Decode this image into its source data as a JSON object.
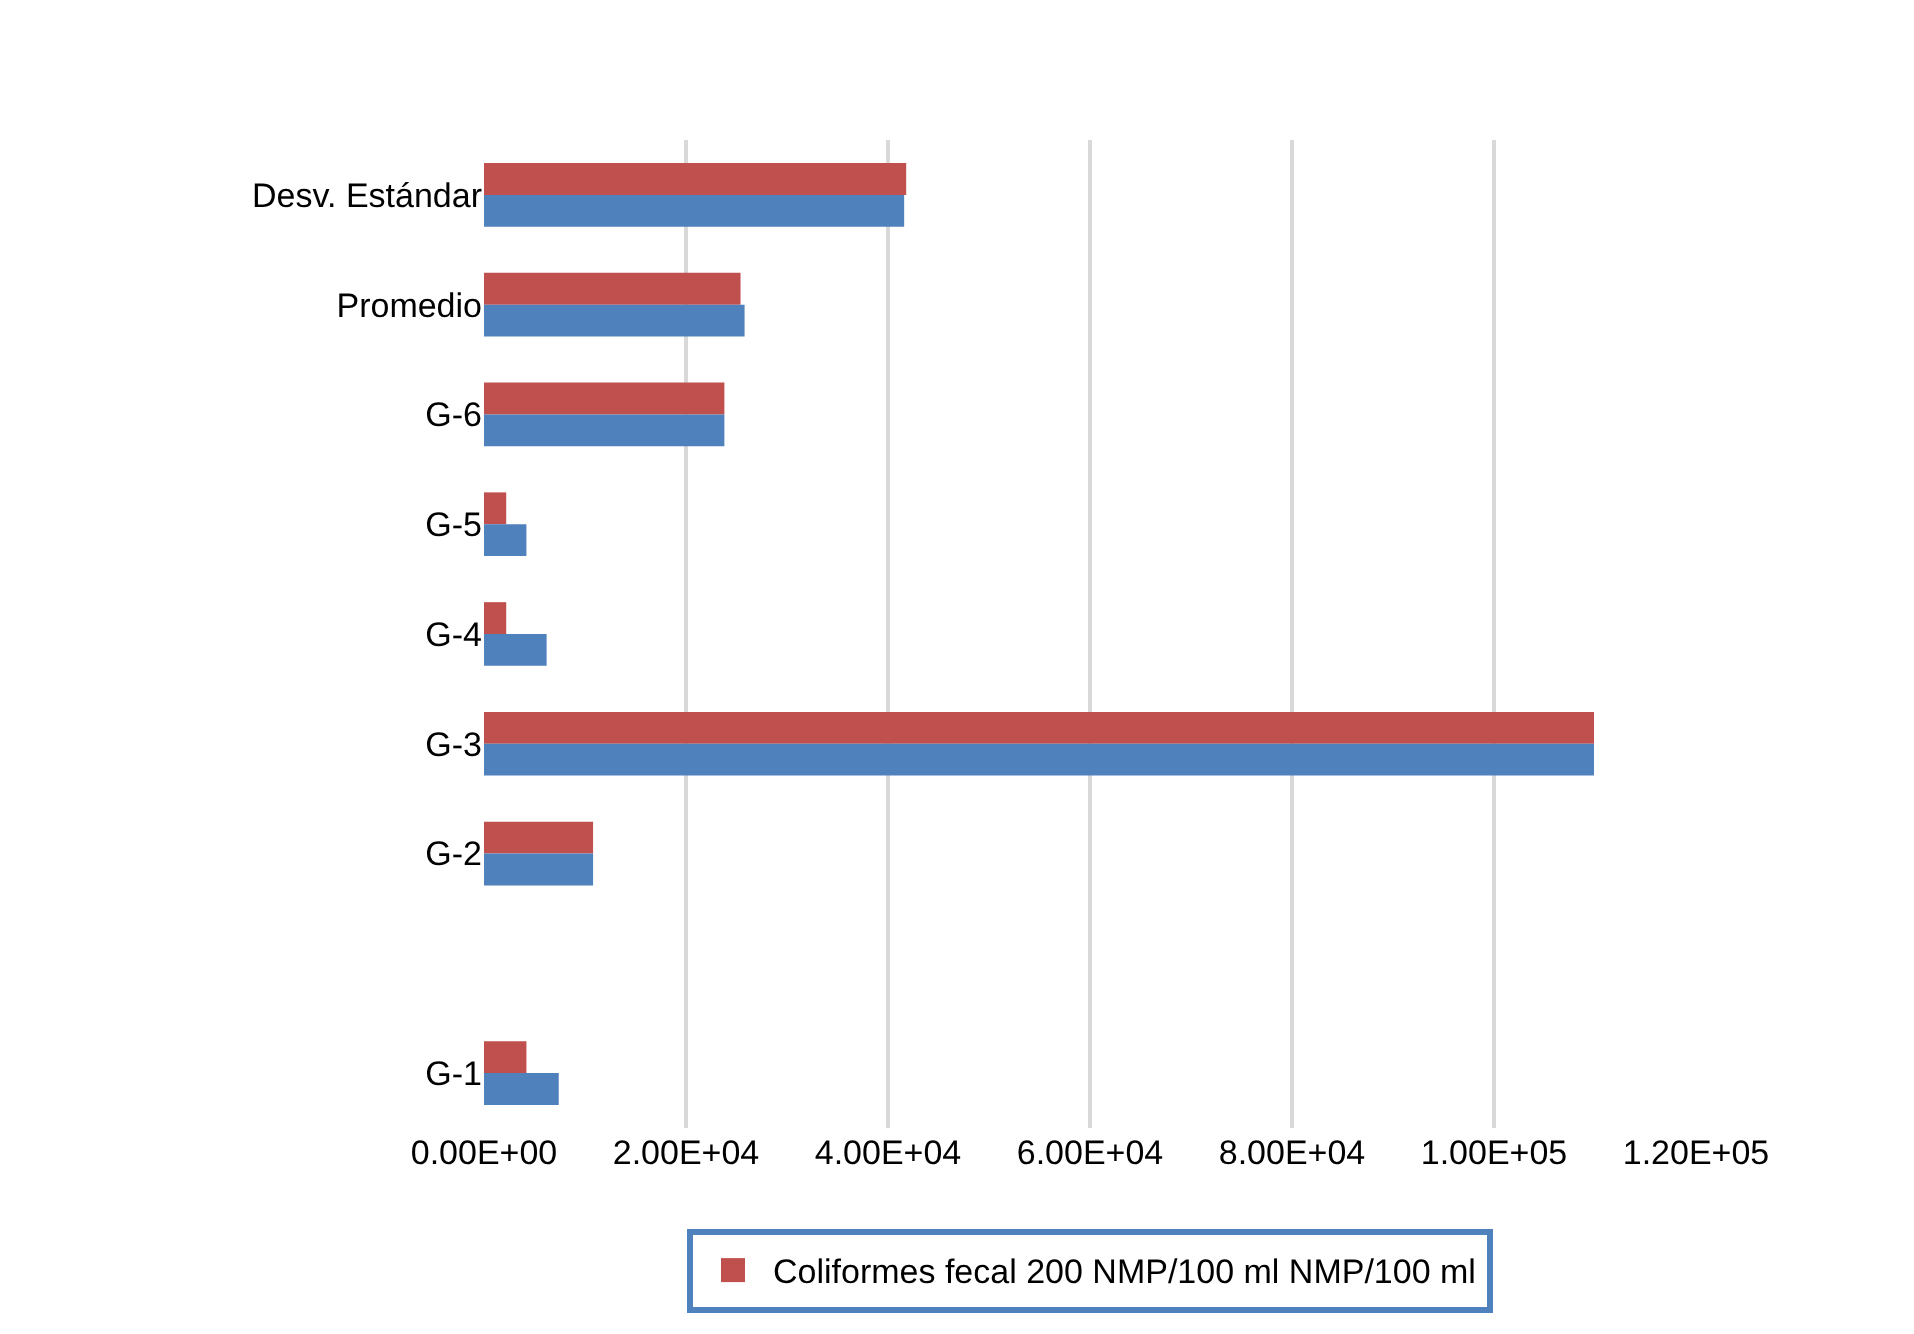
{
  "chart_data": {
    "type": "bar",
    "orientation": "horizontal",
    "categories": [
      "Desv. Estándar",
      "Promedio",
      "G-6",
      "G-5",
      "G-4",
      "G-3",
      "G-2",
      null,
      "G-1"
    ],
    "series": [
      {
        "name": "Coliformes fecal 200 NMP/100 ml NMP/100 ml",
        "color": "#c0504d",
        "values": [
          41800,
          25400,
          23800,
          2200,
          2200,
          109900,
          10800,
          null,
          4200
        ]
      },
      {
        "color": "#4f81bd",
        "values": [
          41600,
          25800,
          23800,
          4200,
          6200,
          109900,
          10800,
          null,
          7400
        ]
      }
    ],
    "xlim": [
      0,
      120000
    ],
    "xticks": [
      {
        "value": 0,
        "label": "0.00E+00"
      },
      {
        "value": 20000,
        "label": "2.00E+04"
      },
      {
        "value": 40000,
        "label": "4.00E+04"
      },
      {
        "value": 60000,
        "label": "6.00E+04"
      },
      {
        "value": 80000,
        "label": "8.00E+04"
      },
      {
        "value": 100000,
        "label": "1.00E+05"
      },
      {
        "value": 120000,
        "label": "1.20E+05"
      }
    ],
    "grid": "x",
    "legend": "bottom"
  }
}
